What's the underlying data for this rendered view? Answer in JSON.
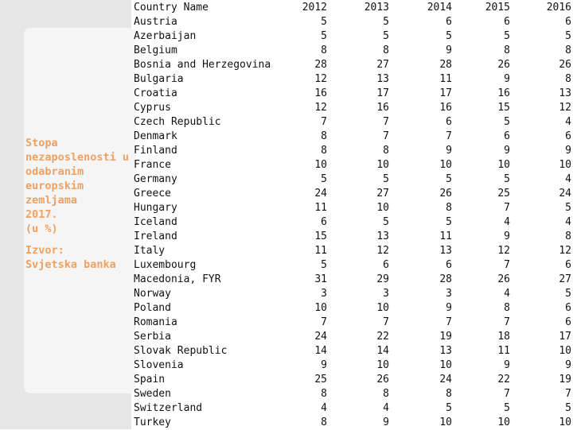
{
  "title_lines": [
    "Stopa",
    "nezaposlenosti u",
    "odabranim",
    "europskim",
    "zemljama",
    "2017.",
    "(u %)"
  ],
  "source_lines": [
    "Izvor:",
    "Svjetska banka"
  ],
  "table": {
    "header": [
      "Country Name",
      "2012",
      "2013",
      "2014",
      "2015",
      "2016"
    ],
    "rows": [
      [
        "Austria",
        5,
        5,
        6,
        6,
        6
      ],
      [
        "Azerbaijan",
        5,
        5,
        5,
        5,
        5
      ],
      [
        "Belgium",
        8,
        8,
        9,
        8,
        8
      ],
      [
        "Bosnia and Herzegovina",
        28,
        27,
        28,
        26,
        26
      ],
      [
        "Bulgaria",
        12,
        13,
        11,
        9,
        8
      ],
      [
        "Croatia",
        16,
        17,
        17,
        16,
        13
      ],
      [
        "Cyprus",
        12,
        16,
        16,
        15,
        12
      ],
      [
        "Czech Republic",
        7,
        7,
        6,
        5,
        4
      ],
      [
        "Denmark",
        8,
        7,
        7,
        6,
        6
      ],
      [
        "Finland",
        8,
        8,
        9,
        9,
        9
      ],
      [
        "France",
        10,
        10,
        10,
        10,
        10
      ],
      [
        "Germany",
        5,
        5,
        5,
        5,
        4
      ],
      [
        "Greece",
        24,
        27,
        26,
        25,
        24
      ],
      [
        "Hungary",
        11,
        10,
        8,
        7,
        5
      ],
      [
        "Iceland",
        6,
        5,
        5,
        4,
        4
      ],
      [
        "Ireland",
        15,
        13,
        11,
        9,
        8
      ],
      [
        "Italy",
        11,
        12,
        13,
        12,
        12
      ],
      [
        "Luxembourg",
        5,
        6,
        6,
        7,
        6
      ],
      [
        "Macedonia, FYR",
        31,
        29,
        28,
        26,
        27
      ],
      [
        "Norway",
        3,
        3,
        3,
        4,
        5
      ],
      [
        "Poland",
        10,
        10,
        9,
        8,
        6
      ],
      [
        "Romania",
        7,
        7,
        7,
        7,
        6
      ],
      [
        "Serbia",
        24,
        22,
        19,
        18,
        17
      ],
      [
        "Slovak Republic",
        14,
        14,
        13,
        11,
        10
      ],
      [
        "Slovenia",
        9,
        10,
        10,
        9,
        9
      ],
      [
        "Spain",
        25,
        26,
        24,
        22,
        19
      ],
      [
        "Sweden",
        8,
        8,
        8,
        7,
        7
      ],
      [
        "Switzerland",
        4,
        4,
        5,
        5,
        5
      ],
      [
        "Turkey",
        8,
        9,
        10,
        10,
        10
      ]
    ]
  }
}
